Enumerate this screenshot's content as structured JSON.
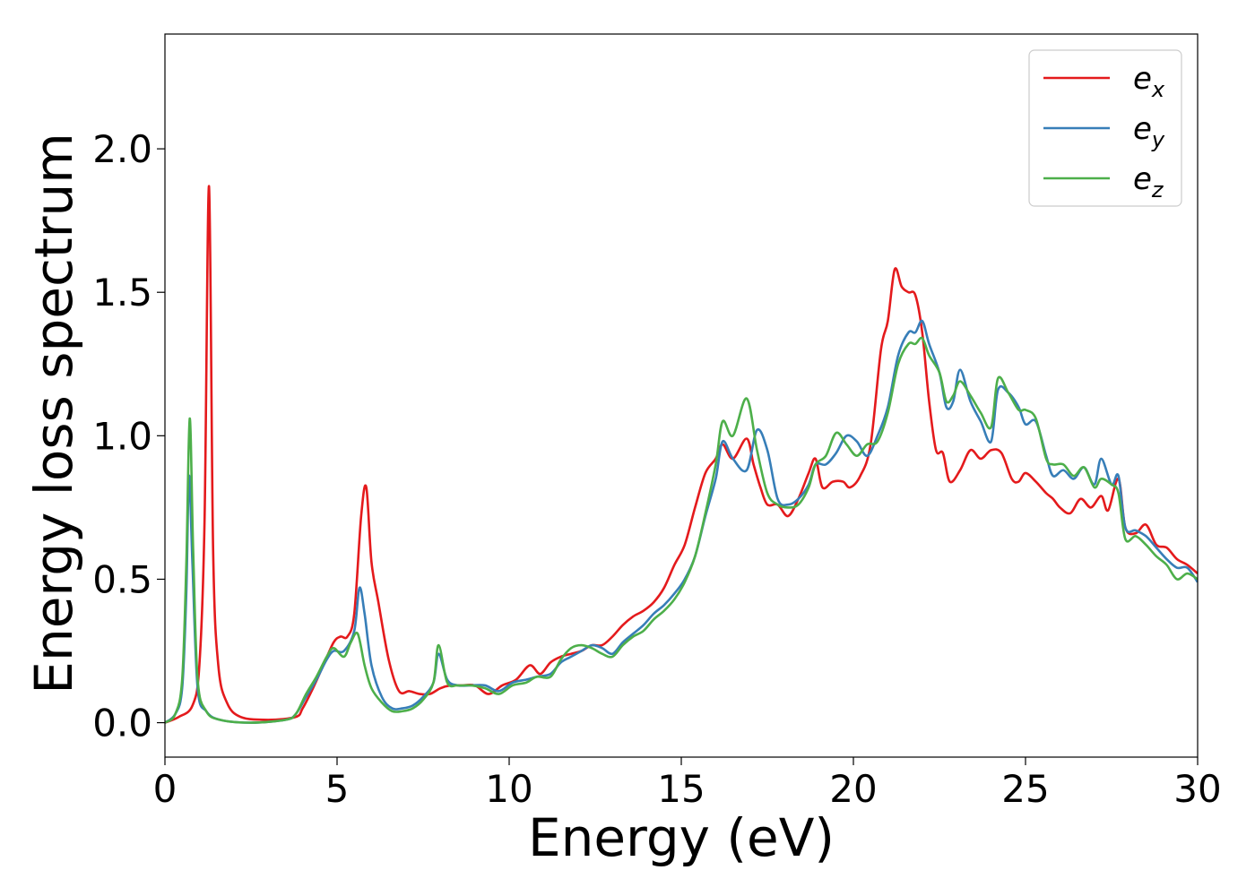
{
  "chart_data": {
    "type": "line",
    "title": "",
    "xlabel": "Energy (eV)",
    "ylabel": "Energy loss spectrum",
    "xlim": [
      0,
      30
    ],
    "ylim": [
      -0.12,
      2.4
    ],
    "xticks": [
      0,
      5,
      10,
      15,
      20,
      25,
      30
    ],
    "xtick_labels": [
      "0",
      "5",
      "10",
      "15",
      "20",
      "25",
      "30"
    ],
    "yticks": [
      0.0,
      0.5,
      1.0,
      1.5,
      2.0
    ],
    "ytick_labels": [
      "0.0",
      "0.5",
      "1.0",
      "1.5",
      "2.0"
    ],
    "grid": false,
    "legend_position": "top-right",
    "series": [
      {
        "name": "e",
        "subscript": "x",
        "color": "#e41a1c",
        "x": [
          0,
          0.4,
          0.8,
          1.0,
          1.15,
          1.28,
          1.4,
          1.55,
          1.8,
          2.2,
          3.0,
          3.8,
          4.0,
          4.3,
          4.6,
          4.9,
          5.1,
          5.3,
          5.5,
          5.7,
          5.85,
          6.0,
          6.2,
          6.5,
          6.8,
          7.1,
          7.4,
          7.7,
          8.0,
          8.3,
          8.6,
          9.0,
          9.4,
          9.8,
          10.2,
          10.6,
          10.9,
          11.2,
          11.5,
          11.8,
          12.1,
          12.4,
          12.7,
          13.0,
          13.3,
          13.6,
          13.9,
          14.2,
          14.5,
          14.8,
          15.1,
          15.4,
          15.7,
          16.0,
          16.2,
          16.5,
          16.9,
          17.1,
          17.3,
          17.5,
          17.8,
          18.1,
          18.4,
          18.7,
          18.9,
          19.1,
          19.4,
          19.7,
          19.9,
          20.2,
          20.5,
          20.8,
          21.0,
          21.2,
          21.4,
          21.6,
          21.8,
          22.0,
          22.2,
          22.4,
          22.6,
          22.8,
          23.1,
          23.4,
          23.7,
          24.0,
          24.3,
          24.6,
          24.8,
          25.0,
          25.3,
          25.6,
          25.8,
          26.0,
          26.3,
          26.6,
          26.9,
          27.2,
          27.4,
          27.7,
          27.9,
          28.2,
          28.5,
          28.8,
          29.1,
          29.4,
          29.7,
          30.0
        ],
        "y": [
          0.0,
          0.02,
          0.06,
          0.2,
          0.7,
          1.87,
          0.6,
          0.2,
          0.07,
          0.02,
          0.01,
          0.02,
          0.05,
          0.12,
          0.2,
          0.28,
          0.3,
          0.3,
          0.38,
          0.72,
          0.82,
          0.56,
          0.42,
          0.22,
          0.11,
          0.11,
          0.1,
          0.1,
          0.12,
          0.13,
          0.13,
          0.13,
          0.1,
          0.13,
          0.15,
          0.2,
          0.17,
          0.21,
          0.23,
          0.24,
          0.25,
          0.27,
          0.27,
          0.3,
          0.34,
          0.37,
          0.39,
          0.42,
          0.47,
          0.55,
          0.62,
          0.75,
          0.87,
          0.92,
          0.97,
          0.92,
          0.99,
          0.9,
          0.82,
          0.76,
          0.76,
          0.72,
          0.78,
          0.87,
          0.92,
          0.82,
          0.84,
          0.84,
          0.82,
          0.86,
          0.97,
          1.3,
          1.4,
          1.58,
          1.52,
          1.5,
          1.49,
          1.36,
          1.12,
          0.95,
          0.94,
          0.84,
          0.88,
          0.95,
          0.92,
          0.95,
          0.94,
          0.85,
          0.84,
          0.87,
          0.84,
          0.8,
          0.78,
          0.75,
          0.73,
          0.78,
          0.75,
          0.79,
          0.74,
          0.85,
          0.68,
          0.66,
          0.69,
          0.62,
          0.61,
          0.57,
          0.55,
          0.52
        ]
      },
      {
        "name": "e",
        "subscript": "y",
        "color": "#377eb8",
        "x": [
          0,
          0.3,
          0.5,
          0.62,
          0.7,
          0.8,
          0.95,
          1.2,
          1.6,
          2.5,
          3.5,
          3.8,
          4.1,
          4.4,
          4.7,
          4.9,
          5.2,
          5.5,
          5.65,
          5.8,
          6.0,
          6.3,
          6.6,
          6.9,
          7.2,
          7.5,
          7.8,
          7.95,
          8.2,
          8.5,
          8.9,
          9.3,
          9.7,
          10.1,
          10.5,
          10.8,
          11.2,
          11.5,
          11.8,
          12.1,
          12.4,
          12.7,
          13.0,
          13.3,
          13.6,
          13.9,
          14.2,
          14.5,
          14.8,
          15.1,
          15.4,
          15.7,
          16.0,
          16.2,
          16.5,
          16.9,
          17.2,
          17.5,
          17.8,
          18.1,
          18.4,
          18.7,
          18.9,
          19.2,
          19.5,
          19.8,
          20.1,
          20.4,
          20.7,
          21.0,
          21.3,
          21.6,
          21.8,
          22.0,
          22.2,
          22.5,
          22.7,
          22.9,
          23.1,
          23.4,
          23.7,
          24.0,
          24.2,
          24.5,
          24.8,
          25.0,
          25.3,
          25.6,
          25.8,
          26.1,
          26.4,
          26.7,
          27.0,
          27.2,
          27.5,
          27.7,
          27.9,
          28.2,
          28.5,
          28.8,
          29.1,
          29.4,
          29.7,
          30.0
        ],
        "y": [
          0.0,
          0.03,
          0.12,
          0.45,
          0.86,
          0.55,
          0.12,
          0.04,
          0.01,
          0.0,
          0.01,
          0.03,
          0.09,
          0.15,
          0.22,
          0.25,
          0.25,
          0.32,
          0.47,
          0.38,
          0.2,
          0.09,
          0.05,
          0.05,
          0.06,
          0.09,
          0.14,
          0.24,
          0.15,
          0.13,
          0.13,
          0.13,
          0.11,
          0.14,
          0.15,
          0.16,
          0.17,
          0.21,
          0.23,
          0.25,
          0.27,
          0.26,
          0.24,
          0.28,
          0.31,
          0.34,
          0.38,
          0.41,
          0.45,
          0.5,
          0.58,
          0.72,
          0.85,
          0.98,
          0.92,
          0.88,
          1.02,
          0.95,
          0.78,
          0.76,
          0.78,
          0.83,
          0.9,
          0.9,
          0.94,
          1.0,
          0.98,
          0.93,
          1.0,
          1.1,
          1.28,
          1.36,
          1.36,
          1.4,
          1.32,
          1.22,
          1.1,
          1.12,
          1.23,
          1.12,
          1.05,
          0.98,
          1.16,
          1.15,
          1.1,
          1.04,
          1.05,
          0.93,
          0.86,
          0.88,
          0.85,
          0.89,
          0.83,
          0.92,
          0.83,
          0.86,
          0.68,
          0.67,
          0.65,
          0.61,
          0.57,
          0.54,
          0.54,
          0.49
        ]
      },
      {
        "name": "e",
        "subscript": "z",
        "color": "#4daf4a",
        "x": [
          0,
          0.3,
          0.5,
          0.62,
          0.72,
          0.82,
          0.95,
          1.2,
          1.6,
          2.5,
          3.5,
          3.8,
          4.1,
          4.4,
          4.7,
          4.9,
          5.2,
          5.4,
          5.6,
          5.8,
          6.0,
          6.3,
          6.6,
          6.9,
          7.2,
          7.5,
          7.8,
          7.95,
          8.2,
          8.5,
          8.9,
          9.3,
          9.7,
          10.1,
          10.5,
          10.8,
          11.2,
          11.5,
          11.8,
          12.1,
          12.4,
          12.7,
          13.0,
          13.3,
          13.6,
          13.9,
          14.2,
          14.5,
          14.8,
          15.1,
          15.4,
          15.7,
          16.0,
          16.2,
          16.5,
          16.9,
          17.2,
          17.5,
          17.8,
          18.1,
          18.4,
          18.7,
          18.9,
          19.2,
          19.5,
          19.8,
          20.1,
          20.4,
          20.7,
          21.0,
          21.3,
          21.6,
          21.8,
          22.0,
          22.2,
          22.5,
          22.7,
          22.9,
          23.1,
          23.4,
          23.7,
          24.0,
          24.2,
          24.5,
          24.8,
          25.0,
          25.3,
          25.6,
          25.8,
          26.1,
          26.4,
          26.7,
          27.0,
          27.2,
          27.5,
          27.7,
          27.9,
          28.2,
          28.5,
          28.8,
          29.1,
          29.4,
          29.7,
          30.0
        ],
        "y": [
          0.0,
          0.03,
          0.15,
          0.55,
          1.06,
          0.6,
          0.15,
          0.04,
          0.01,
          0.0,
          0.01,
          0.03,
          0.1,
          0.16,
          0.23,
          0.26,
          0.23,
          0.28,
          0.31,
          0.2,
          0.12,
          0.07,
          0.04,
          0.04,
          0.05,
          0.08,
          0.14,
          0.27,
          0.14,
          0.13,
          0.13,
          0.12,
          0.1,
          0.13,
          0.14,
          0.16,
          0.16,
          0.22,
          0.26,
          0.27,
          0.26,
          0.24,
          0.23,
          0.27,
          0.3,
          0.32,
          0.36,
          0.39,
          0.43,
          0.49,
          0.58,
          0.73,
          0.9,
          1.05,
          1.0,
          1.13,
          0.95,
          0.8,
          0.76,
          0.75,
          0.76,
          0.82,
          0.9,
          0.93,
          1.01,
          0.97,
          0.93,
          0.97,
          0.98,
          1.08,
          1.25,
          1.32,
          1.32,
          1.34,
          1.28,
          1.22,
          1.12,
          1.14,
          1.19,
          1.14,
          1.08,
          1.03,
          1.2,
          1.15,
          1.09,
          1.09,
          1.06,
          0.92,
          0.9,
          0.9,
          0.86,
          0.89,
          0.82,
          0.85,
          0.83,
          0.8,
          0.64,
          0.65,
          0.62,
          0.58,
          0.55,
          0.5,
          0.52,
          0.5
        ]
      }
    ]
  }
}
